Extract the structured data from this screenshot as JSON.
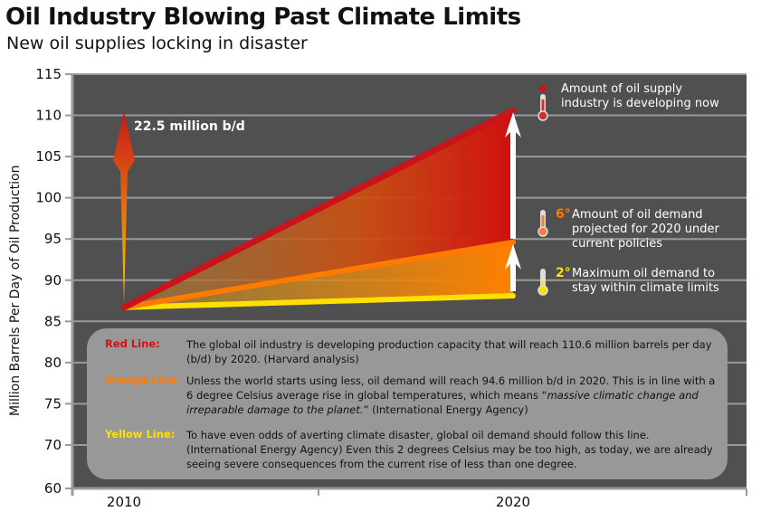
{
  "title": "Oil Industry Blowing Past Climate Limits",
  "subtitle": "New oil supplies locking in disaster",
  "colors": {
    "red": "#c8141a",
    "orange": "#ff7a00",
    "yellow": "#ffe000",
    "background": "#505050",
    "note_box": "#989898"
  },
  "chart_data": {
    "type": "line",
    "ylabel": "Million Barrels Per Day of Oil Production",
    "x_ticks": [
      "2010",
      "2020"
    ],
    "y_ticks": [
      115,
      110,
      105,
      100,
      95,
      90,
      85,
      80,
      75,
      70,
      60
    ],
    "ylim": [
      60,
      115
    ],
    "y_axis_break": "between 60 and 70",
    "grid": true,
    "series": [
      {
        "name": "Red Line",
        "color": "#c8141a",
        "x": [
          "2010",
          "2020"
        ],
        "values": [
          86.7,
          110.6
        ]
      },
      {
        "name": "Orange Line",
        "color": "#ff7a00",
        "x": [
          "2010",
          "2020"
        ],
        "values": [
          86.7,
          94.6
        ]
      },
      {
        "name": "Yellow Line",
        "color": "#ffe000",
        "x": [
          "2010",
          "2020"
        ],
        "values": [
          86.7,
          88.1
        ]
      }
    ],
    "arrow_label": "22.5 million b/d",
    "annotations": [
      {
        "icon": "thermometer-red-icon",
        "degree": "",
        "text": "Amount of oil supply industry is developing now"
      },
      {
        "icon": "thermometer-orange-icon",
        "degree": "6°",
        "text": "Amount of oil demand projected for 2020 under current policies"
      },
      {
        "icon": "thermometer-yellow-icon",
        "degree": "2°",
        "text": "Maximum oil demand to stay within climate limits"
      }
    ]
  },
  "notes": [
    {
      "label": "Red Line:",
      "text": "The global oil industry is developing production capacity that will reach 110.6 million barrels per day (b/d) by 2020. (Harvard analysis)"
    },
    {
      "label": "Orange Line:",
      "text_a": "Unless the world starts using less, oil demand will reach 94.6 million b/d in 2020. This is in line with a 6 degree Celsius average rise in global temperatures, which means “",
      "text_italic": "massive climatic change and irreparable damage to the planet.",
      "text_b": "” (International Energy Agency)"
    },
    {
      "label": "Yellow Line:",
      "text": "To have even odds of averting climate disaster, global oil demand should follow this line. (International Energy Agency) Even this 2 degrees Celsius may be too high, as today, we are already seeing severe consequences from the current rise of less than one degree."
    }
  ]
}
